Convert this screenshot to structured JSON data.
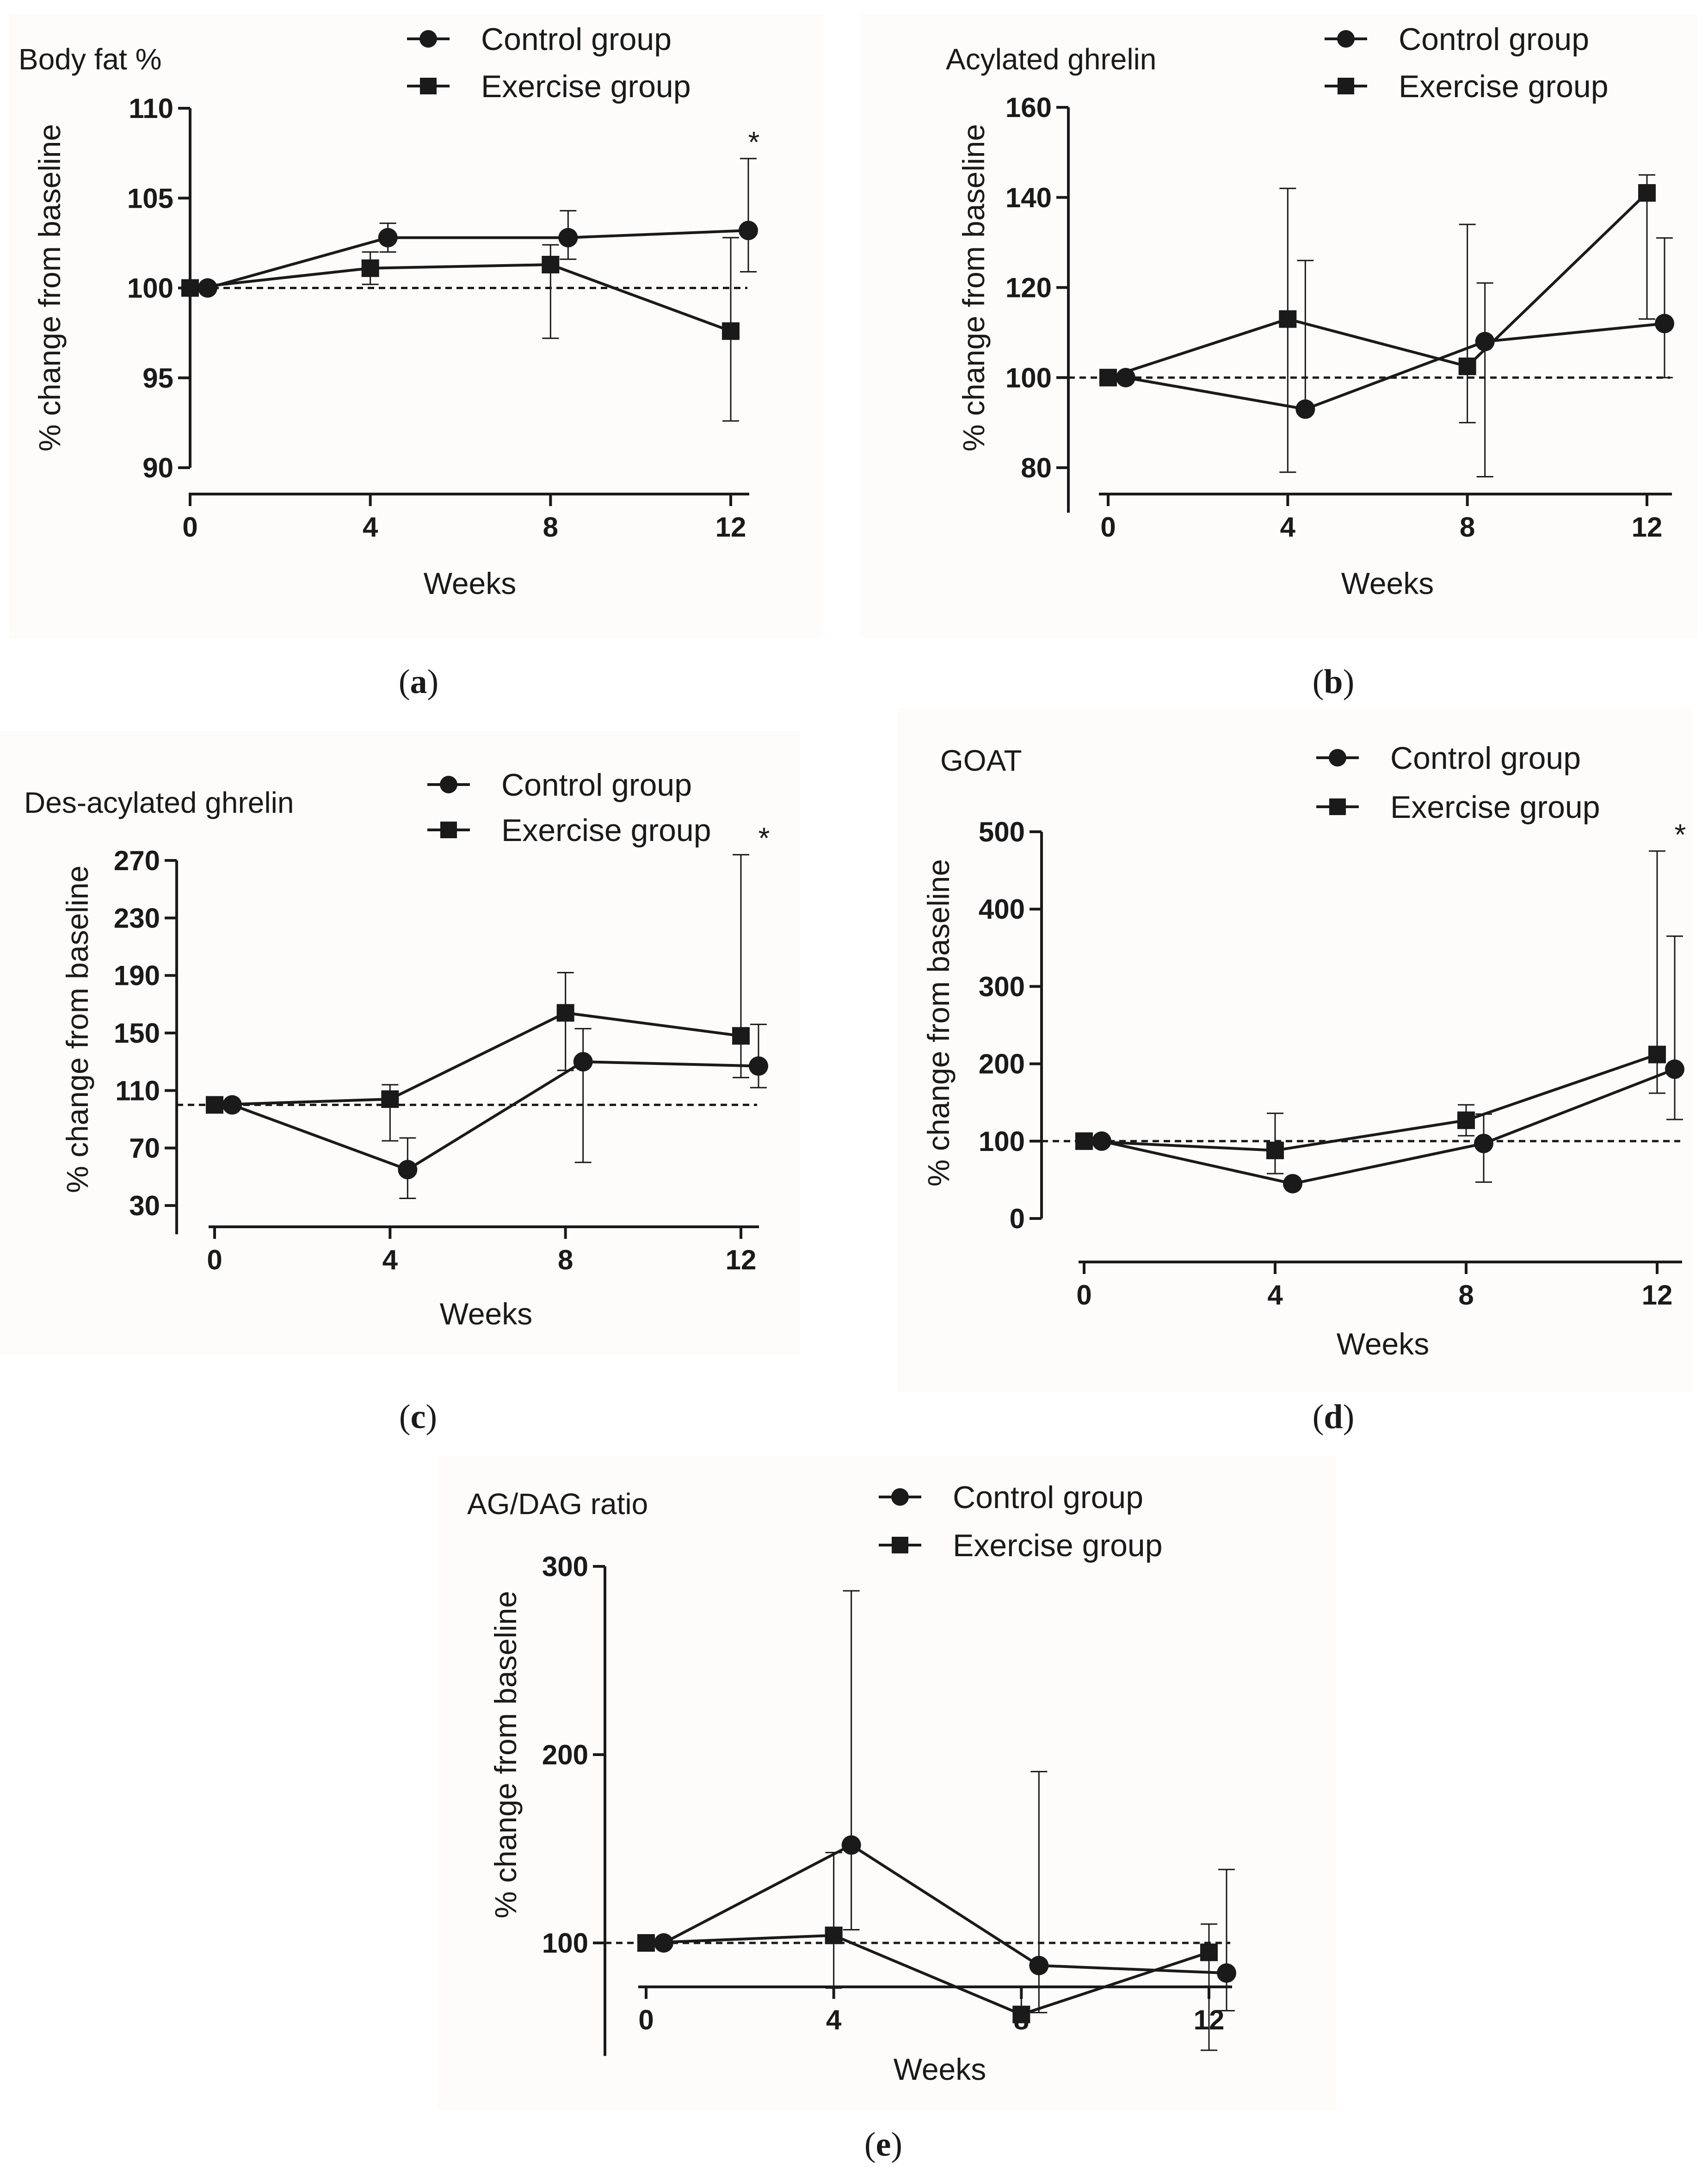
{
  "legend": {
    "control": "Control group",
    "exercise": "Exercise group"
  },
  "star": "*",
  "chart_data": [
    {
      "id": "a",
      "type": "line",
      "title": "Body fat %",
      "caption": "a",
      "xlabel": "Weeks",
      "ylabel": "% change from baseline",
      "x": [
        0,
        4,
        8,
        12
      ],
      "xticks": [
        "0",
        "4",
        "8",
        "12"
      ],
      "ylim": [
        90,
        110
      ],
      "yticks": [
        90,
        95,
        100,
        105,
        110
      ],
      "reference_line": 100,
      "significant_at_week": 12,
      "series": [
        {
          "name": "Control group",
          "marker": "circle",
          "values": [
            100,
            102.8,
            102.8,
            103.2
          ],
          "err_lo": [
            0,
            0.8,
            1.2,
            2.3
          ],
          "err_hi": [
            0,
            0.8,
            1.5,
            4.0
          ]
        },
        {
          "name": "Exercise group",
          "marker": "square",
          "values": [
            100,
            101.1,
            101.3,
            97.6
          ],
          "err_lo": [
            0,
            0.9,
            4.1,
            5.0
          ],
          "err_hi": [
            0,
            0.9,
            1.1,
            5.2
          ]
        }
      ]
    },
    {
      "id": "b",
      "type": "line",
      "title": "Acylated ghrelin",
      "caption": "b",
      "xlabel": "Weeks",
      "ylabel": "% change from baseline",
      "x": [
        0,
        4,
        8,
        12
      ],
      "xticks": [
        "0",
        "4",
        "8",
        "12"
      ],
      "ylim": [
        70,
        160
      ],
      "yticks": [
        80,
        100,
        120,
        140,
        160
      ],
      "reference_line": 100,
      "series": [
        {
          "name": "Control group",
          "marker": "circle",
          "values": [
            100,
            93,
            108,
            112
          ],
          "err_lo": [
            0,
            0,
            30,
            12
          ],
          "err_hi": [
            0,
            33,
            13,
            19
          ]
        },
        {
          "name": "Exercise group",
          "marker": "square",
          "values": [
            100,
            113,
            102.5,
            141
          ],
          "err_lo": [
            0,
            34,
            12.5,
            28
          ],
          "err_hi": [
            0,
            29,
            31.5,
            4
          ]
        }
      ]
    },
    {
      "id": "c",
      "type": "line",
      "title": "Des-acylated ghrelin",
      "caption": "c",
      "xlabel": "Weeks",
      "ylabel": "% change from baseline",
      "x": [
        0,
        4,
        8,
        12
      ],
      "xticks": [
        "0",
        "4",
        "8",
        "12"
      ],
      "ylim": [
        10,
        280
      ],
      "yticks": [
        30,
        70,
        110,
        150,
        190,
        230,
        270
      ],
      "reference_line": 100,
      "significant_at_week": 12,
      "series": [
        {
          "name": "Control group",
          "marker": "circle",
          "values": [
            100,
            55,
            130,
            127
          ],
          "err_lo": [
            0,
            20,
            70,
            15
          ],
          "err_hi": [
            0,
            22,
            23,
            29
          ]
        },
        {
          "name": "Exercise group",
          "marker": "square",
          "values": [
            100,
            104,
            164,
            148
          ],
          "err_lo": [
            0,
            29,
            40,
            29
          ],
          "err_hi": [
            0,
            10,
            28,
            126
          ]
        }
      ]
    },
    {
      "id": "d",
      "type": "line",
      "title": "GOAT",
      "caption": "d",
      "xlabel": "Weeks",
      "ylabel": "% change from baseline",
      "x": [
        0,
        4,
        8,
        12
      ],
      "xticks": [
        "0",
        "4",
        "8",
        "12"
      ],
      "ylim": [
        0,
        500
      ],
      "yticks": [
        0,
        100,
        200,
        300,
        400,
        500
      ],
      "reference_line": 100,
      "significant_at_week": 12,
      "series": [
        {
          "name": "Control group",
          "marker": "circle",
          "values": [
            100,
            45,
            97,
            193
          ],
          "err_lo": [
            0,
            0,
            50,
            65
          ],
          "err_hi": [
            0,
            0,
            38,
            172
          ]
        },
        {
          "name": "Exercise group",
          "marker": "square",
          "values": [
            100,
            88,
            127,
            212
          ],
          "err_lo": [
            0,
            30,
            20,
            50
          ],
          "err_hi": [
            0,
            48,
            20,
            263
          ]
        }
      ]
    },
    {
      "id": "e",
      "type": "line",
      "title": "AG/DAG ratio",
      "caption": "e",
      "xlabel": "Weeks",
      "ylabel": "% change from baseline",
      "x": [
        0,
        4,
        8,
        12
      ],
      "xticks": [
        "0",
        "4",
        "8",
        "12"
      ],
      "ylim": [
        40,
        300
      ],
      "yticks": [
        100,
        200,
        300
      ],
      "reference_line": 100,
      "series": [
        {
          "name": "Control group",
          "marker": "circle",
          "values": [
            100,
            152,
            88,
            84
          ],
          "err_lo": [
            0,
            45,
            25,
            20
          ],
          "err_hi": [
            0,
            135,
            103,
            55
          ]
        },
        {
          "name": "Exercise group",
          "marker": "square",
          "values": [
            100,
            104,
            62,
            95
          ],
          "err_lo": [
            0,
            28,
            0,
            52
          ],
          "err_hi": [
            0,
            44,
            15,
            15
          ]
        }
      ]
    }
  ]
}
